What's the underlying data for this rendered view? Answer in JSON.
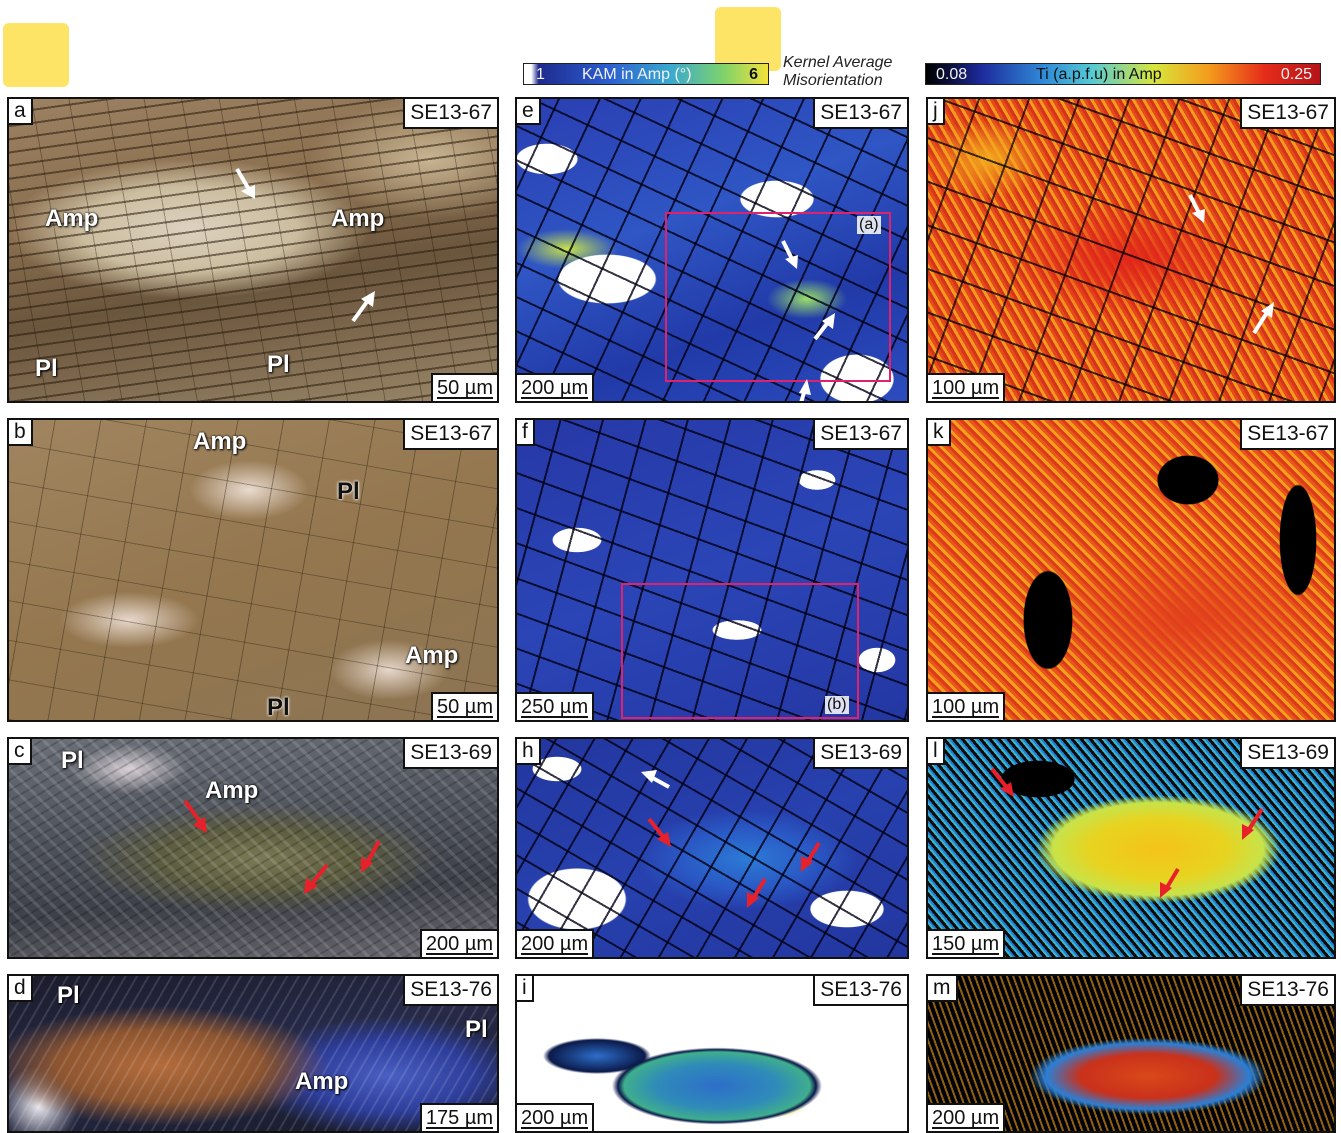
{
  "colorbars": {
    "kam": {
      "min": "1",
      "title": "KAM in Amp (°)",
      "max": "6",
      "caption_line1": "Kernel Average",
      "caption_line2": "Misorientation",
      "colors": [
        "#ffffff",
        "#1e2a8e",
        "#2c5fd0",
        "#39a9d0",
        "#7fd36a",
        "#f2e23a"
      ]
    },
    "ti": {
      "min": "0.08",
      "title": "Ti (a.p.f.u) in Amp",
      "max": "0.25",
      "colors": [
        "#000000",
        "#1d2a9c",
        "#2f8bd8",
        "#55c9d4",
        "#d8e63c",
        "#f49a1c",
        "#e52c1a",
        "#b5141a"
      ]
    }
  },
  "panels": {
    "a": {
      "label": "a",
      "sample": "SE13-67",
      "scale": "50 µm",
      "minerals": [
        "Amp",
        "Amp",
        "Pl",
        "Pl"
      ]
    },
    "b": {
      "label": "b",
      "sample": "SE13-67",
      "scale": "50 µm",
      "minerals": [
        "Amp",
        "Pl",
        "Amp",
        "Pl"
      ]
    },
    "c": {
      "label": "c",
      "sample": "SE13-69",
      "scale": "200 µm",
      "minerals": [
        "Pl",
        "Amp"
      ]
    },
    "d": {
      "label": "d",
      "sample": "SE13-76",
      "scale": "175 µm",
      "minerals": [
        "Pl",
        "Pl",
        "Amp"
      ]
    },
    "e": {
      "label": "e",
      "sample": "SE13-67",
      "scale": "200 µm",
      "inset": "(a)"
    },
    "f": {
      "label": "f",
      "sample": "SE13-67",
      "scale": "250 µm",
      "inset": "(b)"
    },
    "h": {
      "label": "h",
      "sample": "SE13-69",
      "scale": "200 µm"
    },
    "i": {
      "label": "i",
      "sample": "SE13-76",
      "scale": "200 µm"
    },
    "j": {
      "label": "j",
      "sample": "SE13-67",
      "scale": "100 µm"
    },
    "k": {
      "label": "k",
      "sample": "SE13-67",
      "scale": "100 µm"
    },
    "l": {
      "label": "l",
      "sample": "SE13-69",
      "scale": "150 µm"
    },
    "m": {
      "label": "m",
      "sample": "SE13-76",
      "scale": "200 µm"
    }
  },
  "arrow_colors": {
    "white": "#ffffff",
    "red": "#e8202a"
  }
}
